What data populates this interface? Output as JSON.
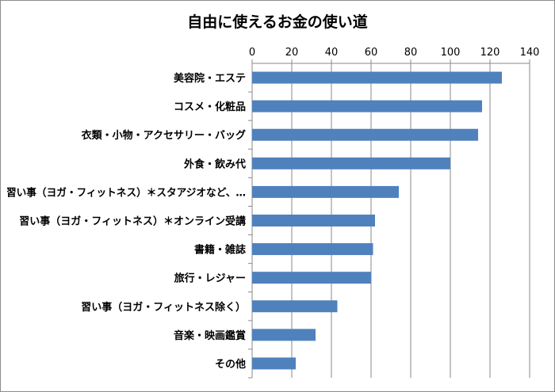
{
  "chart_data": {
    "type": "bar",
    "orientation": "horizontal",
    "title": "自由に使えるお金の使い道",
    "xlabel": "",
    "ylabel": "",
    "xlim": [
      0,
      140
    ],
    "xticks": [
      0,
      20,
      40,
      60,
      80,
      100,
      120,
      140
    ],
    "x_axis_position": "top",
    "grid": true,
    "legend": "none",
    "bar_color": "#4f81bd",
    "categories": [
      "美容院・エステ",
      "コスメ・化粧品",
      "衣類・小物・アクセサリー・バッグ",
      "外食・飲み代",
      "習い事（ヨガ・フィットネス）＊スタアジオなど、…",
      "習い事（ヨガ・フィットネス）＊オンライン受講",
      "書籍・雑誌",
      "旅行・レジャー",
      "習い事（ヨガ・フィットネス除く）",
      "音楽・映画鑑賞",
      "その他"
    ],
    "values": [
      126,
      116,
      114,
      100,
      74,
      62,
      61,
      60,
      43,
      32,
      22
    ]
  }
}
